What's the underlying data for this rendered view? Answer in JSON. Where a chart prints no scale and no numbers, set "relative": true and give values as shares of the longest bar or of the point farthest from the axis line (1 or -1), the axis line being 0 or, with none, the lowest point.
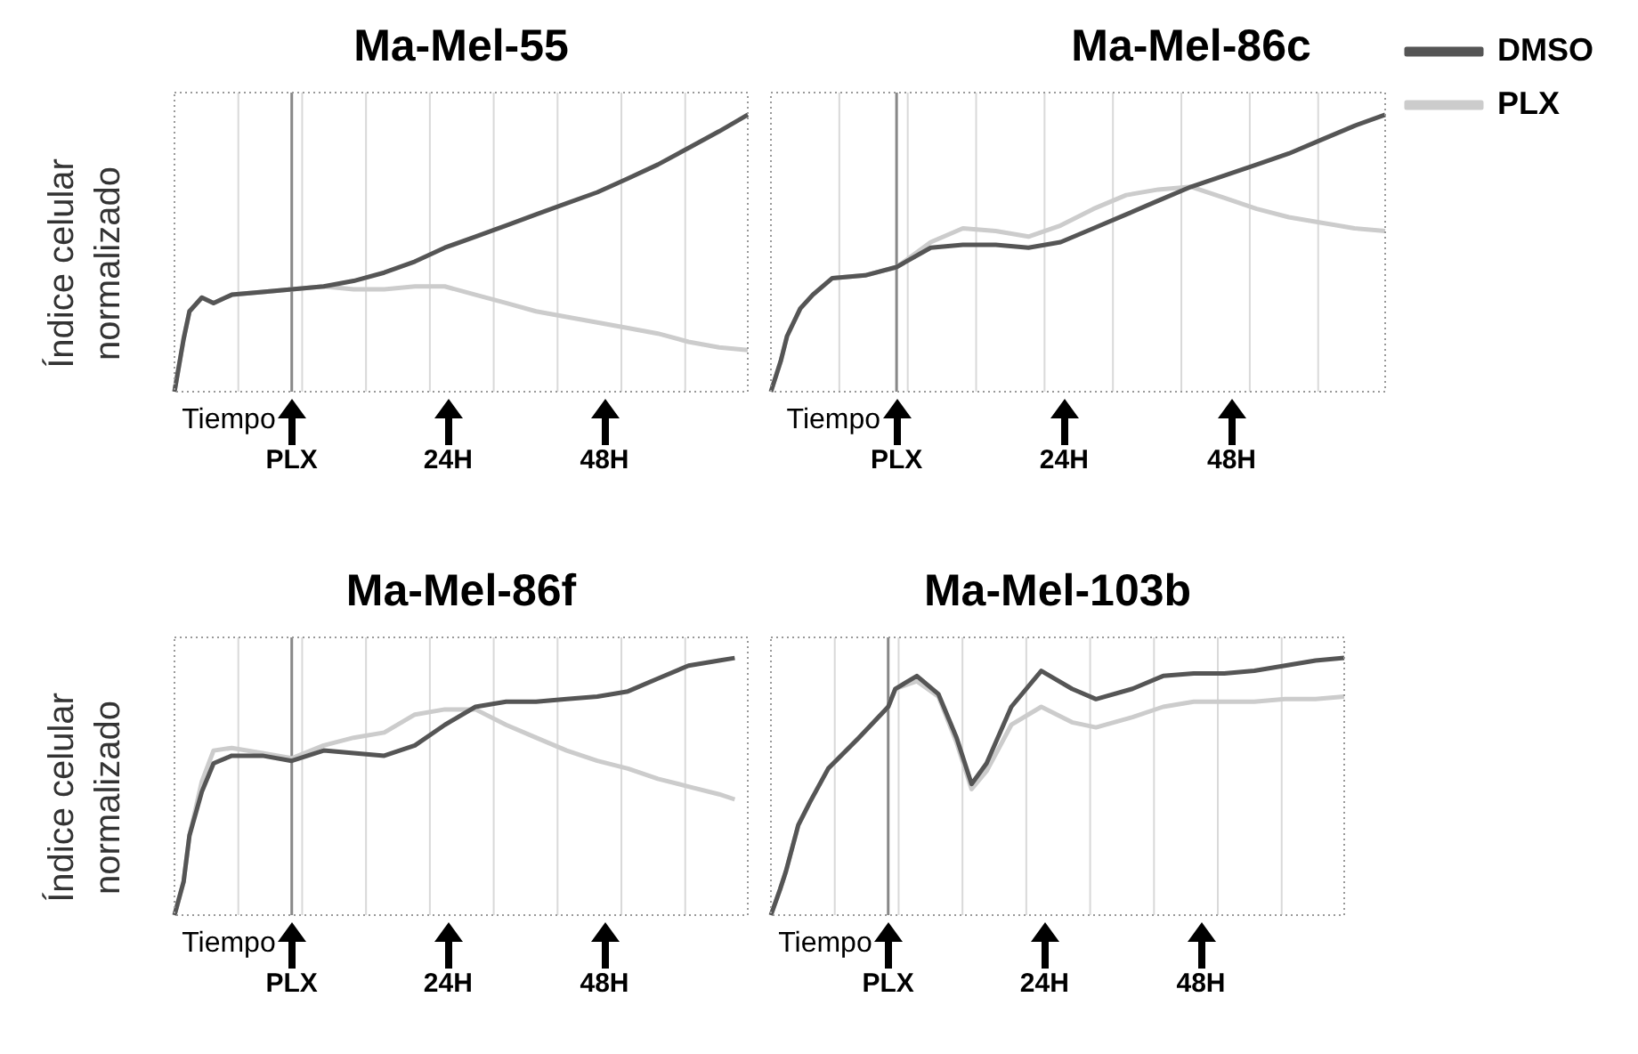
{
  "chart_data": [
    {
      "type": "line",
      "title": "Ma-Mel-55",
      "xlabel": "Tiempo",
      "ylabel": "Índice celular normalizado",
      "relative": true,
      "legend": false,
      "grid": "x",
      "xlim": [
        -18,
        70
      ],
      "xticks": [
        {
          "value": -8.2,
          "label": null
        },
        {
          "value": 0,
          "label": "PLX"
        },
        {
          "value": 1.6,
          "label": null
        },
        {
          "value": 11.4,
          "label": null
        },
        {
          "value": 21.2,
          "label": null
        },
        {
          "value": 24,
          "label": "24H"
        },
        {
          "value": 31,
          "label": null
        },
        {
          "value": 40.8,
          "label": null
        },
        {
          "value": 48,
          "label": "48H"
        },
        {
          "value": 50.6,
          "label": null
        },
        {
          "value": 60.4,
          "label": null
        }
      ],
      "ref_lines": [
        {
          "axis": "x",
          "value": 0,
          "color": "#888888"
        }
      ],
      "x": [
        -18,
        -16.6,
        -15.7,
        -13.8,
        -12,
        -9.2,
        -4.5,
        0,
        4.9,
        9.5,
        14.2,
        18.9,
        23.5,
        28.2,
        32.9,
        37.5,
        42.2,
        46.9,
        51.6,
        56.2,
        60.9,
        65.6,
        70
      ],
      "series": [
        {
          "color": "#555555",
          "values": [
            0,
            0.19,
            0.29,
            0.34,
            0.32,
            0.35,
            0.36,
            0.37,
            0.38,
            0.4,
            0.43,
            0.47,
            0.52,
            0.56,
            0.6,
            0.64,
            0.68,
            0.72,
            0.77,
            0.82,
            0.88,
            0.94,
            1
          ]
        },
        {
          "color": "#cccccc",
          "values": [
            0,
            0.19,
            0.29,
            0.34,
            0.32,
            0.35,
            0.36,
            0.37,
            0.38,
            0.37,
            0.37,
            0.38,
            0.38,
            0.35,
            0.32,
            0.29,
            0.27,
            0.25,
            0.23,
            0.21,
            0.18,
            0.16,
            0.15
          ]
        }
      ]
    },
    {
      "type": "line",
      "title": "Ma-Mel-86c",
      "xlabel": "Tiempo",
      "relative": true,
      "legend": "right",
      "grid": "x",
      "xlim": [
        -18,
        70
      ],
      "xticks": [
        {
          "value": -8.2,
          "label": null
        },
        {
          "value": 0,
          "label": "PLX"
        },
        {
          "value": 1.6,
          "label": null
        },
        {
          "value": 11.4,
          "label": null
        },
        {
          "value": 21.2,
          "label": null
        },
        {
          "value": 24,
          "label": "24H"
        },
        {
          "value": 31,
          "label": null
        },
        {
          "value": 40.8,
          "label": null
        },
        {
          "value": 48,
          "label": "48H"
        },
        {
          "value": 50.6,
          "label": null
        },
        {
          "value": 60.4,
          "label": null
        }
      ],
      "ref_lines": [
        {
          "axis": "x",
          "value": 0,
          "color": "#888888"
        }
      ],
      "x": [
        -18,
        -16.6,
        -15.7,
        -13.8,
        -12,
        -9.2,
        -4.5,
        0,
        4.9,
        9.5,
        14.2,
        18.9,
        23.5,
        28.2,
        32.9,
        37.5,
        42.2,
        46.9,
        51.6,
        56.2,
        60.9,
        65.6,
        70
      ],
      "series": [
        {
          "name": "DMSO",
          "color": "#555555",
          "values": [
            0,
            0.11,
            0.2,
            0.3,
            0.35,
            0.41,
            0.42,
            0.45,
            0.52,
            0.53,
            0.53,
            0.52,
            0.54,
            0.59,
            0.64,
            0.69,
            0.74,
            0.78,
            0.82,
            0.86,
            0.91,
            0.96,
            1
          ]
        },
        {
          "name": "PLX",
          "color": "#cccccc",
          "values": [
            0,
            0.11,
            0.2,
            0.3,
            0.35,
            0.41,
            0.42,
            0.45,
            0.54,
            0.59,
            0.58,
            0.56,
            0.6,
            0.66,
            0.71,
            0.73,
            0.74,
            0.7,
            0.66,
            0.63,
            0.61,
            0.59,
            0.58
          ]
        }
      ]
    },
    {
      "type": "line",
      "title": "Ma-Mel-86f",
      "xlabel": "Tiempo",
      "ylabel": "Índice celular normalizado",
      "relative": true,
      "legend": false,
      "grid": "x",
      "xlim": [
        -18,
        70
      ],
      "xticks": [
        {
          "value": -8.2,
          "label": null
        },
        {
          "value": 0,
          "label": "PLX"
        },
        {
          "value": 1.6,
          "label": null
        },
        {
          "value": 11.4,
          "label": null
        },
        {
          "value": 21.2,
          "label": null
        },
        {
          "value": 24,
          "label": "24H"
        },
        {
          "value": 31,
          "label": null
        },
        {
          "value": 40.8,
          "label": null
        },
        {
          "value": 48,
          "label": "48H"
        },
        {
          "value": 50.6,
          "label": null
        },
        {
          "value": 60.4,
          "label": null
        }
      ],
      "ref_lines": [
        {
          "axis": "x",
          "value": 0,
          "color": "#888888"
        }
      ],
      "x": [
        -18,
        -16.6,
        -15.7,
        -13.8,
        -12,
        -9.2,
        -4.5,
        0,
        4.9,
        9.5,
        14.2,
        18.9,
        23.5,
        28.2,
        32.9,
        37.5,
        42.2,
        46.9,
        51.6,
        56.2,
        60.9,
        65.6,
        68
      ],
      "series": [
        {
          "color": "#555555",
          "values": [
            0,
            0.13,
            0.31,
            0.48,
            0.59,
            0.62,
            0.62,
            0.6,
            0.64,
            0.63,
            0.62,
            0.66,
            0.74,
            0.81,
            0.83,
            0.83,
            0.84,
            0.85,
            0.87,
            0.92,
            0.97,
            0.99,
            1
          ]
        },
        {
          "color": "#cccccc",
          "values": [
            0,
            0.13,
            0.31,
            0.52,
            0.64,
            0.65,
            0.63,
            0.61,
            0.66,
            0.69,
            0.71,
            0.78,
            0.8,
            0.8,
            0.74,
            0.69,
            0.64,
            0.6,
            0.57,
            0.53,
            0.5,
            0.47,
            0.45
          ]
        }
      ]
    },
    {
      "type": "line",
      "title": "Ma-Mel-103b",
      "xlabel": "Tiempo",
      "relative": true,
      "legend": false,
      "grid": "x",
      "xlim": [
        -18,
        70
      ],
      "xticks": [
        {
          "value": -8.2,
          "label": null
        },
        {
          "value": 0,
          "label": "PLX"
        },
        {
          "value": 1.6,
          "label": null
        },
        {
          "value": 11.4,
          "label": null
        },
        {
          "value": 21.2,
          "label": null
        },
        {
          "value": 24,
          "label": "24H"
        },
        {
          "value": 31,
          "label": null
        },
        {
          "value": 40.8,
          "label": null
        },
        {
          "value": 48,
          "label": "48H"
        },
        {
          "value": 50.6,
          "label": null
        },
        {
          "value": 60.4,
          "label": null
        }
      ],
      "ref_lines": [
        {
          "axis": "x",
          "value": 0,
          "color": "#888888"
        }
      ],
      "x": [
        -18,
        -16.6,
        -15.7,
        -13.8,
        -12,
        -9.2,
        -4.5,
        0,
        1.1,
        4.4,
        7.7,
        10.5,
        12.8,
        15.1,
        18.9,
        23.5,
        28.2,
        31.9,
        37.5,
        42.2,
        46.9,
        51.6,
        56.2,
        60.9,
        65.6,
        70
      ],
      "series": [
        {
          "color": "#555555",
          "values": [
            0,
            0.1,
            0.17,
            0.35,
            0.44,
            0.57,
            0.69,
            0.81,
            0.88,
            0.93,
            0.86,
            0.69,
            0.51,
            0.59,
            0.81,
            0.95,
            0.88,
            0.84,
            0.88,
            0.93,
            0.94,
            0.94,
            0.95,
            0.97,
            0.99,
            1
          ]
        },
        {
          "color": "#cccccc",
          "values": [
            0,
            0.1,
            0.17,
            0.35,
            0.44,
            0.57,
            0.69,
            0.81,
            0.88,
            0.91,
            0.85,
            0.67,
            0.49,
            0.56,
            0.74,
            0.81,
            0.75,
            0.73,
            0.77,
            0.81,
            0.83,
            0.83,
            0.83,
            0.84,
            0.84,
            0.85
          ]
        }
      ]
    }
  ]
}
